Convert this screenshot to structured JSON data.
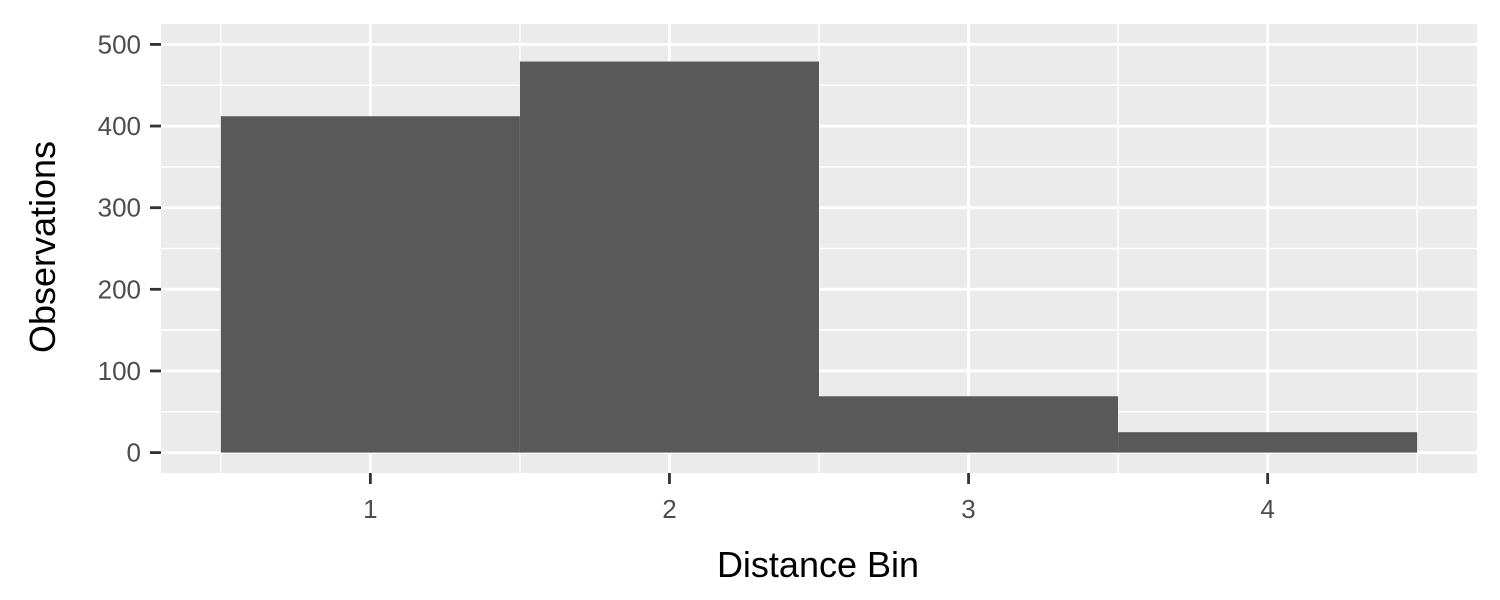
{
  "chart_data": {
    "type": "bar",
    "categories": [
      "1",
      "2",
      "3",
      "4"
    ],
    "values": [
      412,
      479,
      69,
      25
    ],
    "title": "",
    "xlabel": "Distance Bin",
    "ylabel": "Observations",
    "ylim": [
      0,
      500
    ],
    "yticks": [
      0,
      100,
      200,
      300,
      400,
      500
    ],
    "xlim": [
      0.5,
      4.5
    ],
    "grid": true,
    "colors": {
      "bar": "#595959",
      "panel": "#ebebeb",
      "grid": "#ffffff",
      "tick": "#333333"
    }
  }
}
